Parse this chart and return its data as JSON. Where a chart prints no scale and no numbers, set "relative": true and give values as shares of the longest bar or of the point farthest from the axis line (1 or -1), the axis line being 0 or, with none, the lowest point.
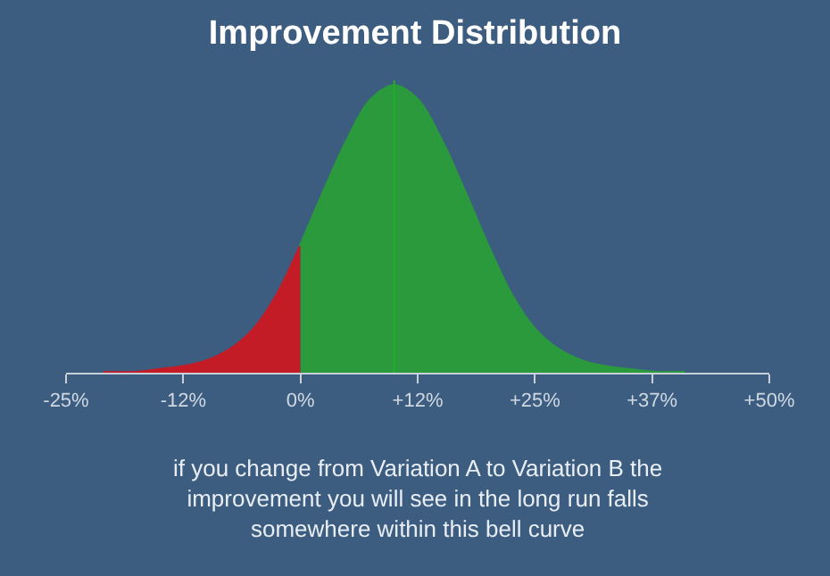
{
  "chart_data": {
    "type": "area",
    "title": "Improvement Distribution",
    "relative": true,
    "xlim": [
      -25,
      50
    ],
    "xticks": [
      {
        "value": -25,
        "label": "-25%"
      },
      {
        "value": -12.5,
        "label": "-12%"
      },
      {
        "value": 0,
        "label": "0%"
      },
      {
        "value": 12.5,
        "label": "+12%"
      },
      {
        "value": 25,
        "label": "+25%"
      },
      {
        "value": 37.5,
        "label": "+37%"
      },
      {
        "value": 50,
        "label": "+50%"
      }
    ],
    "series": [
      {
        "color": "#c41c27",
        "x": [
          -21,
          -17.5,
          -15,
          -12.5,
          -10,
          -7.5,
          -5,
          -2.5,
          0
        ],
        "values": [
          0.0,
          0.0,
          0.01,
          0.02,
          0.04,
          0.08,
          0.15,
          0.27,
          0.44
        ]
      },
      {
        "color": "#2a9a3c",
        "x": [
          0,
          2.5,
          5,
          7.5,
          10,
          12.5,
          15,
          17.5,
          20,
          22.5,
          25,
          27.5,
          30,
          32.5,
          35,
          38,
          41
        ],
        "values": [
          0.44,
          0.63,
          0.81,
          0.95,
          1.0,
          0.95,
          0.81,
          0.63,
          0.44,
          0.27,
          0.15,
          0.08,
          0.04,
          0.02,
          0.01,
          0.0,
          0.0
        ]
      }
    ],
    "ref_lines": [
      {
        "axis": "x",
        "value": 10,
        "color": "#22b02a"
      }
    ],
    "annotations": [
      "if you change from Variation A to Variation B the improvement you will see in the long run falls somewhere within this bell curve"
    ],
    "grid": false
  }
}
